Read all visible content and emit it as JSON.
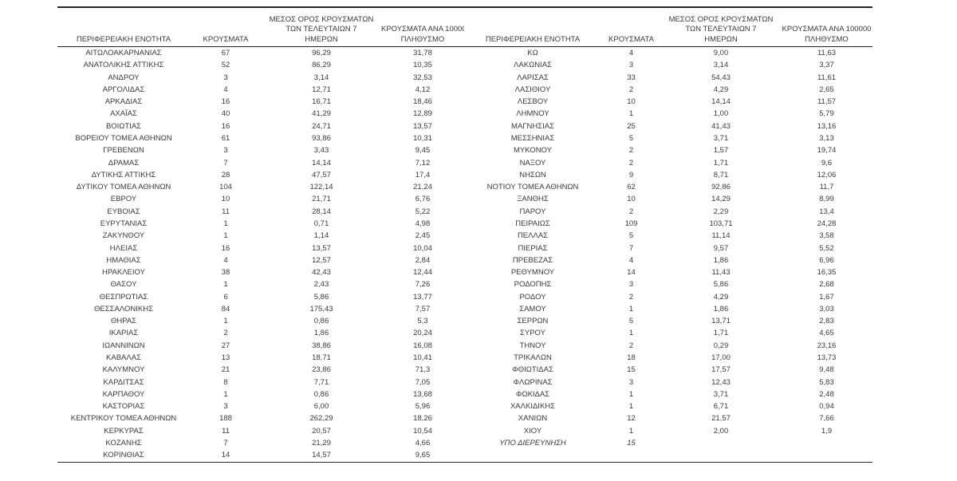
{
  "accent_colors": {
    "text": "#3a3a3a",
    "border": "#262626",
    "background": "#ffffff"
  },
  "headers": {
    "region": "ΠΕΡΙΦΕΡΕΙΑΚΗ ΕΝΟΤΗΤΑ",
    "cases": "ΚΡΟΥΣΜΑΤΑ",
    "avg7_line1": "ΜΕΣΟΣ ΟΡΟΣ ΚΡΟΥΣΜΑΤΩΝ",
    "avg7_line2": "ΤΩΝ ΤΕΛΕΥΤΑΙΩΝ 7",
    "avg7_line3": "ΗΜΕΡΩΝ",
    "per100k_line1": "ΚΡΟΥΣΜΑΤΑ ΑΝΑ 100000",
    "per100k_line2": "ΠΛΗΘΥΣΜΟ"
  },
  "left_rows": [
    {
      "name": "ΑΙΤΩΛΟΑΚΑΡΝΑΝΙΑΣ",
      "cases": "67",
      "avg": "96,29",
      "per": "31,78"
    },
    {
      "name": "ΑΝΑΤΟΛΙΚΗΣ ΑΤΤΙΚΗΣ",
      "cases": "52",
      "avg": "86,29",
      "per": "10,35"
    },
    {
      "name": "ΑΝΔΡΟΥ",
      "cases": "3",
      "avg": "3,14",
      "per": "32,53"
    },
    {
      "name": "ΑΡΓΟΛΙΔΑΣ",
      "cases": "4",
      "avg": "12,71",
      "per": "4,12"
    },
    {
      "name": "ΑΡΚΑΔΙΑΣ",
      "cases": "16",
      "avg": "16,71",
      "per": "18,46"
    },
    {
      "name": "ΑΧΑΪΑΣ",
      "cases": "40",
      "avg": "41,29",
      "per": "12,89"
    },
    {
      "name": "ΒΟΙΩΤΙΑΣ",
      "cases": "16",
      "avg": "24,71",
      "per": "13,57"
    },
    {
      "name": "ΒΟΡΕΙΟΥ ΤΟΜΕΑ ΑΘΗΝΩΝ",
      "cases": "61",
      "avg": "93,86",
      "per": "10,31"
    },
    {
      "name": "ΓΡΕΒΕΝΩΝ",
      "cases": "3",
      "avg": "3,43",
      "per": "9,45"
    },
    {
      "name": "ΔΡΑΜΑΣ",
      "cases": "7",
      "avg": "14,14",
      "per": "7,12"
    },
    {
      "name": "ΔΥΤΙΚΗΣ ΑΤΤΙΚΗΣ",
      "cases": "28",
      "avg": "47,57",
      "per": "17,4"
    },
    {
      "name": "ΔΥΤΙΚΟΥ ΤΟΜΕΑ ΑΘΗΝΩΝ",
      "cases": "104",
      "avg": "122,14",
      "per": "21,24"
    },
    {
      "name": "ΕΒΡΟΥ",
      "cases": "10",
      "avg": "21,71",
      "per": "6,76"
    },
    {
      "name": "ΕΥΒΟΙΑΣ",
      "cases": "11",
      "avg": "28,14",
      "per": "5,22"
    },
    {
      "name": "ΕΥΡΥΤΑΝΙΑΣ",
      "cases": "1",
      "avg": "0,71",
      "per": "4,98"
    },
    {
      "name": "ΖΑΚΥΝΘΟΥ",
      "cases": "1",
      "avg": "1,14",
      "per": "2,45"
    },
    {
      "name": "ΗΛΕΙΑΣ",
      "cases": "16",
      "avg": "13,57",
      "per": "10,04"
    },
    {
      "name": "ΗΜΑΘΙΑΣ",
      "cases": "4",
      "avg": "12,57",
      "per": "2,84"
    },
    {
      "name": "ΗΡΑΚΛΕΙΟΥ",
      "cases": "38",
      "avg": "42,43",
      "per": "12,44"
    },
    {
      "name": "ΘΑΣΟΥ",
      "cases": "1",
      "avg": "2,43",
      "per": "7,26"
    },
    {
      "name": "ΘΕΣΠΡΩΤΙΑΣ",
      "cases": "6",
      "avg": "5,86",
      "per": "13,77"
    },
    {
      "name": "ΘΕΣΣΑΛΟΝΙΚΗΣ",
      "cases": "84",
      "avg": "175,43",
      "per": "7,57"
    },
    {
      "name": "ΘΗΡΑΣ",
      "cases": "1",
      "avg": "0,86",
      "per": "5,3"
    },
    {
      "name": "ΙΚΑΡΙΑΣ",
      "cases": "2",
      "avg": "1,86",
      "per": "20,24"
    },
    {
      "name": "ΙΩΑΝΝΙΝΩΝ",
      "cases": "27",
      "avg": "38,86",
      "per": "16,08"
    },
    {
      "name": "ΚΑΒΑΛΑΣ",
      "cases": "13",
      "avg": "18,71",
      "per": "10,41"
    },
    {
      "name": "ΚΑΛΥΜΝΟΥ",
      "cases": "21",
      "avg": "23,86",
      "per": "71,3"
    },
    {
      "name": "ΚΑΡΔΙΤΣΑΣ",
      "cases": "8",
      "avg": "7,71",
      "per": "7,05"
    },
    {
      "name": "ΚΑΡΠΑΘΟΥ",
      "cases": "1",
      "avg": "0,86",
      "per": "13,68"
    },
    {
      "name": "ΚΑΣΤΟΡΙΑΣ",
      "cases": "3",
      "avg": "6,00",
      "per": "5,96"
    },
    {
      "name": "ΚΕΝΤΡΙΚΟΥ ΤΟΜΕΑ ΑΘΗΝΩΝ",
      "cases": "188",
      "avg": "262,29",
      "per": "18,26"
    },
    {
      "name": "ΚΕΡΚΥΡΑΣ",
      "cases": "11",
      "avg": "20,57",
      "per": "10,54"
    },
    {
      "name": "ΚΟΖΑΝΗΣ",
      "cases": "7",
      "avg": "21,29",
      "per": "4,66"
    },
    {
      "name": "ΚΟΡΙΝΘΙΑΣ",
      "cases": "14",
      "avg": "14,57",
      "per": "9,65"
    }
  ],
  "right_rows": [
    {
      "name": "ΚΩ",
      "cases": "4",
      "avg": "9,00",
      "per": "11,63"
    },
    {
      "name": "ΛΑΚΩΝΙΑΣ",
      "cases": "3",
      "avg": "3,14",
      "per": "3,37"
    },
    {
      "name": "ΛΑΡΙΣΑΣ",
      "cases": "33",
      "avg": "54,43",
      "per": "11,61"
    },
    {
      "name": "ΛΑΣΙΘΙΟΥ",
      "cases": "2",
      "avg": "4,29",
      "per": "2,65"
    },
    {
      "name": "ΛΕΣΒΟΥ",
      "cases": "10",
      "avg": "14,14",
      "per": "11,57"
    },
    {
      "name": "ΛΗΜΝΟΥ",
      "cases": "1",
      "avg": "1,00",
      "per": "5,79"
    },
    {
      "name": "ΜΑΓΝΗΣΙΑΣ",
      "cases": "25",
      "avg": "41,43",
      "per": "13,16"
    },
    {
      "name": "ΜΕΣΣΗΝΙΑΣ",
      "cases": "5",
      "avg": "3,71",
      "per": "3,13"
    },
    {
      "name": "ΜΥΚΟΝΟΥ",
      "cases": "2",
      "avg": "1,57",
      "per": "19,74"
    },
    {
      "name": "ΝΑΞΟΥ",
      "cases": "2",
      "avg": "1,71",
      "per": "9,6"
    },
    {
      "name": "ΝΗΣΩΝ",
      "cases": "9",
      "avg": "8,71",
      "per": "12,06"
    },
    {
      "name": "ΝΟΤΙΟΥ ΤΟΜΕΑ ΑΘΗΝΩΝ",
      "cases": "62",
      "avg": "92,86",
      "per": "11,7"
    },
    {
      "name": "ΞΑΝΘΗΣ",
      "cases": "10",
      "avg": "14,29",
      "per": "8,99"
    },
    {
      "name": "ΠΑΡΟΥ",
      "cases": "2",
      "avg": "2,29",
      "per": "13,4"
    },
    {
      "name": "ΠΕΙΡΑΙΩΣ",
      "cases": "109",
      "avg": "103,71",
      "per": "24,28"
    },
    {
      "name": "ΠΕΛΛΑΣ",
      "cases": "5",
      "avg": "11,14",
      "per": "3,58"
    },
    {
      "name": "ΠΙΕΡΙΑΣ",
      "cases": "7",
      "avg": "9,57",
      "per": "5,52"
    },
    {
      "name": "ΠΡΕΒΕΖΑΣ",
      "cases": "4",
      "avg": "1,86",
      "per": "6,96"
    },
    {
      "name": "ΡΕΘΥΜΝΟΥ",
      "cases": "14",
      "avg": "11,43",
      "per": "16,35"
    },
    {
      "name": "ΡΟΔΟΠΗΣ",
      "cases": "3",
      "avg": "5,86",
      "per": "2,68"
    },
    {
      "name": "ΡΟΔΟΥ",
      "cases": "2",
      "avg": "4,29",
      "per": "1,67"
    },
    {
      "name": "ΣΑΜΟΥ",
      "cases": "1",
      "avg": "1,86",
      "per": "3,03"
    },
    {
      "name": "ΣΕΡΡΩΝ",
      "cases": "5",
      "avg": "13,71",
      "per": "2,83"
    },
    {
      "name": "ΣΥΡΟΥ",
      "cases": "1",
      "avg": "1,71",
      "per": "4,65"
    },
    {
      "name": "ΤΗΝΟΥ",
      "cases": "2",
      "avg": "0,29",
      "per": "23,16"
    },
    {
      "name": "ΤΡΙΚΑΛΩΝ",
      "cases": "18",
      "avg": "17,00",
      "per": "13,73"
    },
    {
      "name": "ΦΘΙΩΤΙΔΑΣ",
      "cases": "15",
      "avg": "17,57",
      "per": "9,48"
    },
    {
      "name": "ΦΛΩΡΙΝΑΣ",
      "cases": "3",
      "avg": "12,43",
      "per": "5,83"
    },
    {
      "name": "ΦΩΚΙΔΑΣ",
      "cases": "1",
      "avg": "3,71",
      "per": "2,48"
    },
    {
      "name": "ΧΑΛΚΙΔΙΚΗΣ",
      "cases": "1",
      "avg": "6,71",
      "per": "0,94"
    },
    {
      "name": "ΧΑΝΙΩΝ",
      "cases": "12",
      "avg": "21,57",
      "per": "7,66"
    },
    {
      "name": "ΧΙΟΥ",
      "cases": "1",
      "avg": "2,00",
      "per": "1,9"
    },
    {
      "name": "ΥΠΟ ΔΙΕΡΕΥΝΗΣΗ",
      "cases": "15",
      "avg": "",
      "per": "",
      "italic": true
    }
  ]
}
